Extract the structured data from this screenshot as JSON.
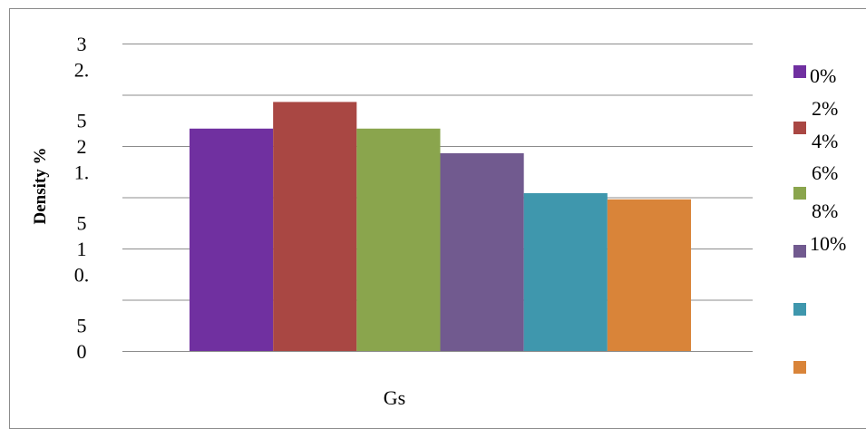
{
  "chart_data": {
    "type": "bar",
    "categories": [
      "Gs"
    ],
    "series": [
      {
        "name": "0%",
        "values": [
          2.17
        ],
        "color": "#7030A0"
      },
      {
        "name": "2%",
        "values": [
          2.43
        ],
        "color": "#A94743"
      },
      {
        "name": "4%",
        "values": [
          2.17
        ],
        "color": "#8AA54D"
      },
      {
        "name": "6%",
        "values": [
          1.93
        ],
        "color": "#715A8F"
      },
      {
        "name": "8%",
        "values": [
          1.54
        ],
        "color": "#3F97AD"
      },
      {
        "name": "10%",
        "values": [
          1.48
        ],
        "color": "#D98439"
      }
    ],
    "xlabel": "Gs",
    "ylabel": "Density %",
    "ylim": [
      0,
      3
    ],
    "yticks": [
      {
        "value": 0,
        "lines": [
          "0"
        ]
      },
      {
        "value": 0.5,
        "lines": [
          "0.",
          "5"
        ]
      },
      {
        "value": 1,
        "lines": [
          "1"
        ]
      },
      {
        "value": 1.5,
        "lines": [
          "1.",
          "5"
        ]
      },
      {
        "value": 2,
        "lines": [
          "2"
        ]
      },
      {
        "value": 2.5,
        "lines": [
          "2.",
          "5"
        ]
      },
      {
        "value": 3,
        "lines": [
          "3"
        ]
      }
    ],
    "grid": true,
    "legend": {
      "placement": "right",
      "labels": [
        "0%",
        "2%",
        "4%",
        "6%",
        "8%",
        "10%"
      ]
    }
  }
}
